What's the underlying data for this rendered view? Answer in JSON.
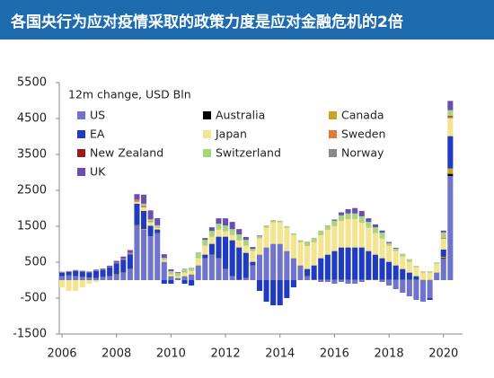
{
  "header": {
    "title": "各国央行为应对疫情采取的政策力度是应对金融危机的2倍"
  },
  "chart_data": {
    "type": "stacked_bar",
    "legend_title": "12m change, USD Bln",
    "x": [
      2006,
      2006.25,
      2006.5,
      2006.75,
      2007,
      2007.25,
      2007.5,
      2007.75,
      2008,
      2008.25,
      2008.5,
      2008.75,
      2009,
      2009.25,
      2009.5,
      2009.75,
      2010,
      2010.25,
      2010.5,
      2010.75,
      2011,
      2011.25,
      2011.5,
      2011.75,
      2012,
      2012.25,
      2012.5,
      2012.75,
      2013,
      2013.25,
      2013.5,
      2013.75,
      2014,
      2014.25,
      2014.5,
      2014.75,
      2015,
      2015.25,
      2015.5,
      2015.75,
      2016,
      2016.25,
      2016.5,
      2016.75,
      2017,
      2017.25,
      2017.5,
      2017.75,
      2018,
      2018.25,
      2018.5,
      2018.75,
      2019,
      2019.25,
      2019.5,
      2019.75,
      2020,
      2020.25
    ],
    "xlim": [
      2005.9,
      2020.7
    ],
    "xticks": [
      2006,
      2008,
      2010,
      2012,
      2014,
      2016,
      2018,
      2020
    ],
    "ylim": [
      -1500,
      5500
    ],
    "yticks": [
      -1500,
      -500,
      500,
      1500,
      2500,
      3500,
      4500,
      5500
    ],
    "series": [
      {
        "name": "US",
        "color": "#6f73c9",
        "values": [
          100,
          120,
          100,
          80,
          60,
          50,
          80,
          100,
          150,
          200,
          300,
          1500,
          1400,
          1200,
          1300,
          500,
          100,
          50,
          100,
          150,
          400,
          600,
          700,
          600,
          300,
          100,
          0,
          50,
          400,
          700,
          900,
          1000,
          1000,
          800,
          600,
          400,
          100,
          0,
          -50,
          -50,
          -100,
          -50,
          -100,
          -100,
          -50,
          0,
          0,
          -50,
          -150,
          -250,
          -350,
          -450,
          -550,
          -600,
          -500,
          200,
          600,
          2900
        ]
      },
      {
        "name": "Australia",
        "color": "#000000",
        "values": [
          5,
          5,
          5,
          5,
          5,
          5,
          5,
          5,
          10,
          10,
          10,
          10,
          5,
          5,
          5,
          5,
          5,
          5,
          5,
          5,
          5,
          5,
          5,
          5,
          5,
          5,
          5,
          5,
          5,
          5,
          5,
          5,
          5,
          5,
          5,
          5,
          5,
          5,
          5,
          5,
          5,
          5,
          5,
          5,
          5,
          5,
          5,
          5,
          5,
          5,
          5,
          5,
          5,
          5,
          5,
          5,
          20,
          60
        ]
      },
      {
        "name": "Canada",
        "color": "#c9a227",
        "values": [
          5,
          5,
          5,
          5,
          5,
          5,
          5,
          5,
          10,
          10,
          10,
          20,
          20,
          10,
          5,
          5,
          5,
          5,
          5,
          5,
          5,
          5,
          5,
          5,
          5,
          5,
          5,
          5,
          5,
          5,
          5,
          5,
          5,
          5,
          5,
          5,
          5,
          5,
          5,
          5,
          5,
          5,
          5,
          5,
          5,
          5,
          5,
          5,
          5,
          5,
          5,
          5,
          5,
          5,
          5,
          5,
          30,
          150
        ]
      },
      {
        "name": "EA",
        "color": "#1f3cc0",
        "values": [
          100,
          100,
          150,
          150,
          150,
          200,
          200,
          250,
          300,
          350,
          400,
          600,
          500,
          300,
          100,
          -100,
          -100,
          0,
          -100,
          -150,
          0,
          100,
          300,
          600,
          900,
          1000,
          900,
          700,
          100,
          -300,
          -600,
          -700,
          -700,
          -500,
          -200,
          0,
          200,
          400,
          600,
          700,
          800,
          900,
          900,
          900,
          900,
          800,
          700,
          600,
          500,
          400,
          300,
          200,
          100,
          0,
          -50,
          0,
          200,
          900
        ]
      },
      {
        "name": "Japan",
        "color": "#f3e490",
        "values": [
          -200,
          -300,
          -300,
          -200,
          -100,
          -50,
          0,
          0,
          0,
          0,
          0,
          50,
          100,
          100,
          50,
          50,
          50,
          50,
          100,
          100,
          200,
          250,
          200,
          200,
          150,
          150,
          200,
          200,
          300,
          450,
          550,
          600,
          600,
          650,
          650,
          650,
          650,
          650,
          650,
          700,
          700,
          750,
          800,
          800,
          700,
          650,
          600,
          550,
          450,
          400,
          350,
          300,
          250,
          200,
          200,
          250,
          300,
          500
        ]
      },
      {
        "name": "Sweden",
        "color": "#e07b3c",
        "values": [
          5,
          5,
          5,
          5,
          5,
          5,
          5,
          5,
          10,
          20,
          30,
          50,
          40,
          20,
          10,
          5,
          5,
          5,
          5,
          5,
          5,
          5,
          5,
          5,
          5,
          5,
          5,
          5,
          5,
          5,
          5,
          5,
          5,
          5,
          5,
          10,
          10,
          10,
          10,
          10,
          10,
          10,
          10,
          10,
          10,
          5,
          5,
          5,
          5,
          5,
          5,
          5,
          5,
          5,
          5,
          5,
          10,
          30
        ]
      },
      {
        "name": "New Zealand",
        "color": "#9a1c1c",
        "values": [
          2,
          2,
          2,
          2,
          2,
          2,
          2,
          2,
          2,
          2,
          2,
          5,
          5,
          2,
          2,
          2,
          2,
          2,
          2,
          2,
          2,
          2,
          2,
          2,
          2,
          2,
          2,
          2,
          2,
          2,
          2,
          2,
          2,
          2,
          2,
          2,
          2,
          2,
          2,
          2,
          2,
          2,
          2,
          2,
          2,
          2,
          2,
          2,
          2,
          2,
          2,
          2,
          2,
          2,
          2,
          2,
          10,
          30
        ]
      },
      {
        "name": "Switzerland",
        "color": "#a6d67a",
        "values": [
          0,
          0,
          0,
          0,
          0,
          0,
          0,
          0,
          0,
          0,
          0,
          0,
          50,
          50,
          50,
          50,
          80,
          80,
          80,
          80,
          150,
          150,
          150,
          150,
          150,
          150,
          150,
          150,
          50,
          50,
          50,
          50,
          30,
          30,
          30,
          30,
          100,
          100,
          100,
          100,
          130,
          130,
          130,
          130,
          150,
          150,
          150,
          150,
          60,
          60,
          60,
          60,
          20,
          20,
          20,
          20,
          150,
          150
        ]
      },
      {
        "name": "Norway",
        "color": "#8a8a8a",
        "values": [
          5,
          5,
          5,
          5,
          5,
          5,
          5,
          5,
          5,
          5,
          5,
          10,
          10,
          5,
          5,
          5,
          5,
          5,
          5,
          5,
          5,
          5,
          5,
          5,
          5,
          5,
          5,
          5,
          5,
          5,
          5,
          5,
          5,
          5,
          5,
          5,
          5,
          5,
          5,
          5,
          5,
          5,
          5,
          5,
          5,
          5,
          5,
          5,
          5,
          5,
          5,
          5,
          5,
          5,
          5,
          5,
          10,
          20
        ]
      },
      {
        "name": "UK",
        "color": "#6a4fb0",
        "values": [
          10,
          10,
          10,
          10,
          10,
          20,
          20,
          30,
          50,
          60,
          80,
          150,
          250,
          250,
          200,
          100,
          50,
          20,
          10,
          0,
          0,
          50,
          100,
          150,
          200,
          200,
          150,
          80,
          50,
          20,
          0,
          0,
          0,
          0,
          0,
          0,
          0,
          0,
          0,
          0,
          30,
          80,
          120,
          150,
          150,
          100,
          80,
          60,
          30,
          20,
          0,
          0,
          0,
          0,
          0,
          0,
          50,
          250
        ]
      }
    ]
  }
}
